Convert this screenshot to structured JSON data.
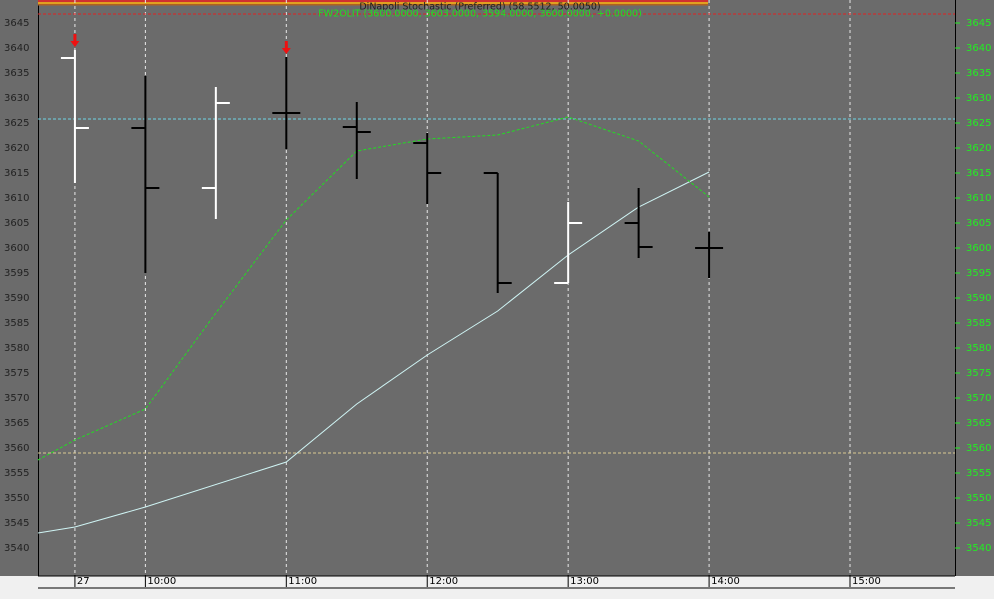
{
  "chart_data": {
    "type": "ohlc",
    "annotations": [
      {
        "text": "DiNapoli Stochastic (Preferred) (58.5512, 50.0050)",
        "color": "#202020"
      },
      {
        "text": "FW2OLIT (3600.0000, 3603.0000, 3594.0000, 3600.0000, +0.0000)",
        "color": "#20e020"
      }
    ],
    "x": [
      9.5,
      10,
      10.5,
      11,
      11.5,
      12,
      12.5,
      13,
      13.5,
      14
    ],
    "open": [
      3638,
      3624,
      3612,
      3627,
      3624.2,
      3621,
      3615,
      3593,
      3605,
      3600
    ],
    "high": [
      3639.6,
      3634.4,
      3632.2,
      3638.2,
      3629.2,
      3623,
      3615,
      3609.2,
      3612,
      3603.2
    ],
    "low": [
      3613,
      3595,
      3605.8,
      3619.8,
      3613.8,
      3608.8,
      3591,
      3593,
      3598,
      3594
    ],
    "close": [
      3624,
      3612,
      3629,
      3627,
      3623.2,
      3615,
      3593,
      3605,
      3600.2,
      3600
    ],
    "bar_colors": [
      "#ffffff",
      "#000000",
      "#ffffff",
      "#000000",
      "#000000",
      "#000000",
      "#000000",
      "#ffffff",
      "#000000",
      "#000000"
    ],
    "lines": [
      {
        "color": "#cff4f4",
        "dashed": false,
        "x": [
          9.238,
          9.5,
          10,
          11,
          11.5,
          12,
          12.5,
          13,
          13.5,
          14
        ],
        "values": [
          3543,
          3544.2,
          3548.2,
          3557.2,
          3568.8,
          3578.6,
          3587.4,
          3598.6,
          3608.2,
          3615.2
        ]
      },
      {
        "color": "#22dd22",
        "dashed": true,
        "x": [
          9.238,
          9.5,
          10,
          10.5,
          11,
          11.5,
          12,
          12.5,
          13,
          13.5,
          14
        ],
        "values": [
          3557.6,
          3561.6,
          3567.8,
          3587,
          3605.6,
          3619.4,
          3621.8,
          3622.6,
          3626.2,
          3621.4,
          3610.2
        ]
      }
    ],
    "levels": [
      {
        "value": 3646.8,
        "color": "#e02020"
      },
      {
        "value": 3625.8,
        "color": "#6fd6e6"
      },
      {
        "value": 3559,
        "color": "#d8c890"
      }
    ],
    "markers": {
      "x": [
        9.5,
        11
      ],
      "color": "#ee1111"
    },
    "xlim": [
      9.238,
      15.745
    ],
    "ylim": [
      3534.6,
      3649.6
    ],
    "xticks": [
      {
        "value": 9.5,
        "label": "27"
      },
      {
        "value": 10,
        "label": "10:00"
      },
      {
        "value": 11,
        "label": "11:00"
      },
      {
        "value": 12,
        "label": "12:00"
      },
      {
        "value": 13,
        "label": "13:00"
      },
      {
        "value": 14,
        "label": "14:00"
      },
      {
        "value": 15,
        "label": "15:00"
      }
    ],
    "yticks": [
      3540,
      3545,
      3550,
      3555,
      3560,
      3565,
      3570,
      3575,
      3580,
      3585,
      3590,
      3595,
      3600,
      3605,
      3610,
      3615,
      3620,
      3625,
      3630,
      3635,
      3640,
      3645
    ],
    "grid": true
  }
}
